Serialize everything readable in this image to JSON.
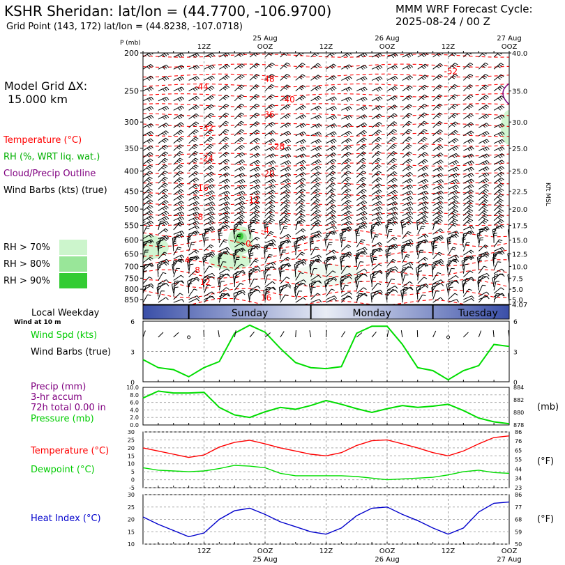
{
  "header": {
    "title": "KSHR Sheridan:  lat/lon = (44.7700, -106.9700)",
    "subtitle": "Grid Point (143, 172) lat/lon = (44.8238, -107.0718)",
    "cycle_line1": "MMM WRF Forecast Cycle:",
    "cycle_line2": "2025-08-24 / 00  Z"
  },
  "legend": {
    "grid_label": "Model Grid ΔX:",
    "grid_value": "15.000 km",
    "temperature": "Temperature (°C)",
    "rh": "RH (%, WRT liq. wat.)",
    "cloud": "Cloud/Precip Outline",
    "wind": "Wind Barbs (kts) (true)",
    "rh70": "RH > 70%",
    "rh80": "RH > 80%",
    "rh90": "RH > 90%",
    "weekday_label": "Local Weekday",
    "wind_at": "Wind at 10 m",
    "wind_spd": "Wind Spd (kts)",
    "wind_barbs": "Wind Barbs (true)",
    "precip1": "Precip (mm)",
    "precip2": "3-hr accum",
    "precip3": "72h total 0.00 in",
    "pressure": "Pressure (mb)",
    "temp2": "Temperature (°C)",
    "dewpoint": "Dewpoint (°C)",
    "heat_index": "Heat Index (°C)",
    "unit_mb": "(mb)",
    "unit_f1": "(°F)",
    "unit_f2": "(°F)",
    "kft_msl": "Kft MSL",
    "p_label": "P (mb)"
  },
  "colors": {
    "temp": "#ff0000",
    "rh_green": "#00cc00",
    "cloud": "#800080",
    "dew": "#00dd00",
    "heat": "#0000cc",
    "rh70": "#ccf5cc",
    "rh80": "#99e699",
    "rh90": "#33cc33"
  },
  "chart_data": [
    {
      "type": "contour",
      "name": "cross-section",
      "y_scale": "log-pressure",
      "ylim": [
        200,
        875
      ],
      "pressure_ticks": [
        "200",
        "250",
        "300",
        "350",
        "400",
        "450",
        "500",
        "550",
        "600",
        "650",
        "700",
        "750",
        "800",
        "850"
      ],
      "height_ticks": [
        {
          "p": 200,
          "l": "40.0"
        },
        {
          "p": 250,
          "l": "35.0"
        },
        {
          "p": 300,
          "l": "30.0"
        },
        {
          "p": 350,
          "l": "25.0"
        },
        {
          "p": 400,
          "l": "25.0"
        },
        {
          "p": 450,
          "l": "22.5"
        },
        {
          "p": 500,
          "l": "20.0"
        },
        {
          "p": 550,
          "l": "17.5"
        },
        {
          "p": 600,
          "l": "15.0"
        },
        {
          "p": 650,
          "l": "12.5"
        },
        {
          "p": 700,
          "l": "10.0"
        },
        {
          "p": 750,
          "l": "7.5"
        },
        {
          "p": 800,
          "l": "5.0"
        },
        {
          "p": 850,
          "l": "5.0"
        },
        {
          "p": 875,
          "l": "4.07"
        }
      ],
      "top_time_labels": [
        "12Z",
        "OOZ",
        "12Z",
        "OOZ",
        "12Z",
        "OOZ"
      ],
      "top_date_labels": [
        "25 Aug",
        "26 Aug",
        "27 Aug"
      ],
      "temperature_labels": [
        {
          "t": -52,
          "h": 60,
          "p": 222
        },
        {
          "t": -48,
          "h": 24,
          "p": 232
        },
        {
          "t": -44,
          "h": 11,
          "p": 243
        },
        {
          "t": -40,
          "h": 28,
          "p": 262
        },
        {
          "t": -36,
          "h": 24,
          "p": 286
        },
        {
          "t": -32,
          "h": 12,
          "p": 310
        },
        {
          "t": -28,
          "h": 26,
          "p": 345
        },
        {
          "t": -24,
          "h": 12,
          "p": 370
        },
        {
          "t": -20,
          "h": 24,
          "p": 405
        },
        {
          "t": -16,
          "h": 11,
          "p": 440
        },
        {
          "t": -12,
          "h": 21,
          "p": 472
        },
        {
          "t": -8,
          "h": 11,
          "p": 522
        },
        {
          "t": -4,
          "h": 24,
          "p": 565
        },
        {
          "t": 0,
          "h": 21,
          "p": 610
        },
        {
          "t": 4,
          "h": 9,
          "p": 672
        },
        {
          "t": 8,
          "h": 11,
          "p": 713
        },
        {
          "t": 12,
          "h": 12,
          "p": 765
        },
        {
          "t": 16,
          "h": 24,
          "p": 838
        }
      ]
    },
    {
      "type": "line",
      "name": "wind-speed",
      "unit": "kts",
      "ylim": [
        0,
        6
      ],
      "yticks": [
        "0",
        "3",
        "6"
      ],
      "x_hours": [
        0,
        3,
        6,
        9,
        12,
        15,
        18,
        21,
        24,
        27,
        30,
        33,
        36,
        39,
        42,
        45,
        48,
        51,
        54,
        57,
        60,
        63,
        66,
        69,
        72
      ],
      "values": [
        2.2,
        1.4,
        1.2,
        0.5,
        1.4,
        2.0,
        4.8,
        5.6,
        4.9,
        3.3,
        1.9,
        1.4,
        1.3,
        1.5,
        4.8,
        5.5,
        5.5,
        3.7,
        1.4,
        1.1,
        0.2,
        1.1,
        1.6,
        3.7,
        3.5
      ],
      "weekdays": [
        "Sunday",
        "Monday",
        "Tuesday"
      ]
    },
    {
      "type": "line",
      "name": "precip-pressure",
      "precip_unit": "mm",
      "precip_ticks": [
        "0.0",
        "2.0",
        "4.0",
        "6.0",
        "8.0",
        "10.0"
      ],
      "pressure_ticks": [
        "878",
        "880",
        "882",
        "884"
      ],
      "ylim_pressure": [
        878,
        884
      ],
      "precip_values": [
        0,
        0,
        0,
        0,
        0,
        0,
        0,
        0,
        0,
        0,
        0,
        0,
        0,
        0,
        0,
        0,
        0,
        0,
        0,
        0,
        0,
        0,
        0,
        0,
        0
      ],
      "pressure_values": [
        882.3,
        883.4,
        883.1,
        883.1,
        883.2,
        880.8,
        879.6,
        879.2,
        880.1,
        880.8,
        880.5,
        881.1,
        881.9,
        881.3,
        880.6,
        880.0,
        880.6,
        881.1,
        880.8,
        881.0,
        881.3,
        880.3,
        879.1,
        878.5,
        878.2
      ]
    },
    {
      "type": "line",
      "name": "temperature-dewpoint",
      "unit": "°C",
      "ylim": [
        -5,
        30
      ],
      "c_ticks": [
        "-5",
        "0",
        "5",
        "10",
        "15",
        "20",
        "25",
        "30"
      ],
      "f_ticks": [
        {
          "c": -5,
          "l": "23"
        },
        {
          "c": 1,
          "l": "34"
        },
        {
          "c": 6.7,
          "l": "44"
        },
        {
          "c": 12.8,
          "l": "55"
        },
        {
          "c": 18.3,
          "l": "65"
        },
        {
          "c": 24.4,
          "l": "76"
        },
        {
          "c": 30,
          "l": "86"
        }
      ],
      "temperature": [
        20,
        18,
        16,
        14,
        15.5,
        20.5,
        23.5,
        24.8,
        22.5,
        20,
        18,
        16,
        15,
        17,
        21.5,
        24.5,
        25,
        22.5,
        20,
        17,
        15,
        18,
        22.5,
        26.5,
        27.5
      ],
      "dewpoint": [
        7.5,
        6,
        5.5,
        5,
        5.5,
        7,
        9,
        8.5,
        7.5,
        4,
        2.5,
        2.5,
        2.5,
        2.5,
        2,
        1,
        0,
        0.5,
        1,
        1.5,
        3,
        5,
        6,
        4.5,
        4
      ]
    },
    {
      "type": "line",
      "name": "heat-index",
      "unit": "°C",
      "ylim": [
        10,
        30
      ],
      "c_ticks": [
        "10",
        "15",
        "20",
        "25",
        "30"
      ],
      "f_ticks": [
        {
          "c": 10,
          "l": "50"
        },
        {
          "c": 15,
          "l": "59"
        },
        {
          "c": 20,
          "l": "68"
        },
        {
          "c": 25,
          "l": "77"
        },
        {
          "c": 30,
          "l": "86"
        }
      ],
      "values": [
        21,
        18,
        15.5,
        13,
        14.5,
        20,
        23.5,
        24.5,
        22,
        19,
        17,
        15,
        14,
        16.5,
        21.5,
        24.5,
        25,
        22,
        19.5,
        16.5,
        14,
        16.5,
        23,
        26.5,
        27
      ],
      "bottom_time_labels": [
        "12Z",
        "OOZ",
        "12Z",
        "OOZ",
        "12Z",
        "OOZ"
      ],
      "bottom_date_labels": [
        "25 Aug",
        "26 Aug",
        "27 Aug"
      ]
    }
  ]
}
